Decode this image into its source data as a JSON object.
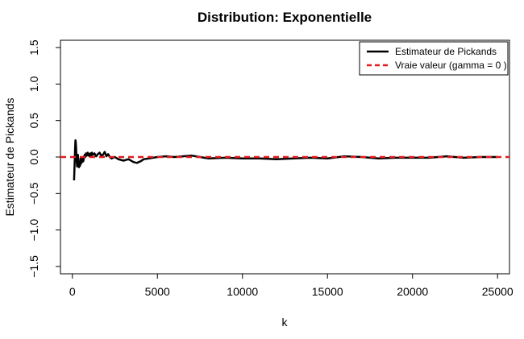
{
  "chart_data": {
    "type": "line",
    "title": "Distribution: Exponentielle",
    "xlabel": "k",
    "ylabel": "Estimateur de Pickands",
    "xlim": [
      -700,
      25700
    ],
    "ylim": [
      -1.6,
      1.6
    ],
    "xticks": [
      0,
      5000,
      10000,
      15000,
      20000,
      25000
    ],
    "xtick_labels": [
      "0",
      "5000",
      "10000",
      "15000",
      "20000",
      "25000"
    ],
    "yticks": [
      -1.5,
      -1.0,
      -0.5,
      0.0,
      0.5,
      1.0,
      1.5
    ],
    "ytick_labels": [
      "−1.5",
      "−1.0",
      "−0.5",
      "0.0",
      "0.5",
      "1.0",
      "1.5"
    ],
    "grid": false,
    "legend_position": "top-right",
    "series": [
      {
        "name": "Estimateur de Pickands",
        "color": "#000000",
        "style": "solid",
        "x": [
          100,
          120,
          140,
          160,
          180,
          200,
          220,
          240,
          260,
          280,
          300,
          330,
          360,
          390,
          420,
          450,
          480,
          510,
          540,
          570,
          600,
          640,
          680,
          720,
          760,
          800,
          850,
          900,
          950,
          1000,
          1050,
          1100,
          1150,
          1200,
          1300,
          1400,
          1500,
          1600,
          1700,
          1800,
          1900,
          2000,
          2100,
          2200,
          2300,
          2500,
          2700,
          3000,
          3300,
          3600,
          3800,
          4000,
          4200,
          4500,
          5000,
          5500,
          6000,
          6500,
          7000,
          7500,
          8000,
          9000,
          10000,
          11000,
          12000,
          13000,
          14000,
          15000,
          16000,
          17000,
          18000,
          19000,
          20000,
          21000,
          22000,
          23000,
          24000,
          25000
        ],
        "y": [
          -0.32,
          -0.18,
          -0.05,
          0.1,
          0.23,
          0.2,
          0.12,
          0.0,
          -0.08,
          -0.13,
          -0.05,
          0.03,
          -0.1,
          -0.14,
          -0.07,
          -0.12,
          -0.02,
          -0.09,
          -0.04,
          -0.07,
          -0.02,
          -0.06,
          -0.01,
          0.03,
          0.0,
          0.05,
          0.02,
          0.06,
          0.03,
          0.01,
          0.05,
          0.02,
          0.06,
          0.03,
          0.05,
          0.01,
          0.04,
          0.06,
          0.02,
          0.03,
          0.07,
          0.01,
          0.04,
          0.0,
          -0.02,
          0.0,
          -0.03,
          -0.05,
          -0.03,
          -0.07,
          -0.08,
          -0.06,
          -0.03,
          -0.02,
          0.0,
          0.01,
          0.0,
          0.01,
          0.02,
          0.0,
          -0.02,
          -0.01,
          -0.02,
          -0.02,
          -0.03,
          -0.02,
          -0.01,
          -0.02,
          0.01,
          0.0,
          -0.02,
          -0.01,
          -0.01,
          -0.01,
          0.01,
          -0.01,
          0.0,
          0.0
        ]
      },
      {
        "name": "Vraie valeur (gamma = 0 )",
        "color": "#e41a1c",
        "style": "dashed",
        "x": [
          -700,
          25700
        ],
        "y": [
          0,
          0
        ]
      }
    ]
  }
}
